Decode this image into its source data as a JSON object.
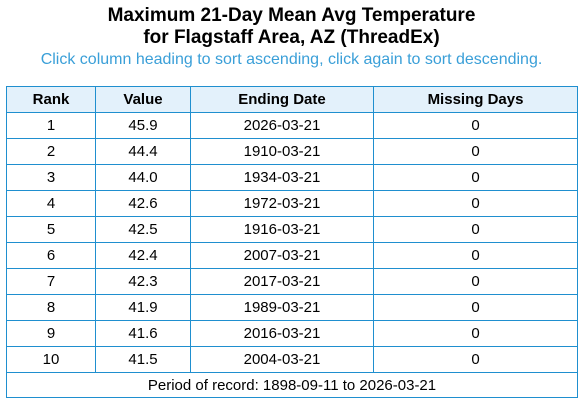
{
  "title_line1": "Maximum 21-Day Mean Avg Temperature",
  "title_line2": "for Flagstaff Area, AZ (ThreadEx)",
  "instruction": "Click column heading to sort ascending, click again to sort descending.",
  "table": {
    "headers": [
      "Rank",
      "Value",
      "Ending Date",
      "Missing Days"
    ],
    "rows": [
      {
        "rank": "1",
        "value": "45.9",
        "date": "2026-03-21",
        "missing": "0"
      },
      {
        "rank": "2",
        "value": "44.4",
        "date": "1910-03-21",
        "missing": "0"
      },
      {
        "rank": "3",
        "value": "44.0",
        "date": "1934-03-21",
        "missing": "0"
      },
      {
        "rank": "4",
        "value": "42.6",
        "date": "1972-03-21",
        "missing": "0"
      },
      {
        "rank": "5",
        "value": "42.5",
        "date": "1916-03-21",
        "missing": "0"
      },
      {
        "rank": "6",
        "value": "42.4",
        "date": "2007-03-21",
        "missing": "0"
      },
      {
        "rank": "7",
        "value": "42.3",
        "date": "2017-03-21",
        "missing": "0"
      },
      {
        "rank": "8",
        "value": "41.9",
        "date": "1989-03-21",
        "missing": "0"
      },
      {
        "rank": "9",
        "value": "41.6",
        "date": "2016-03-21",
        "missing": "0"
      },
      {
        "rank": "10",
        "value": "41.5",
        "date": "2004-03-21",
        "missing": "0"
      }
    ],
    "footer": "Period of record: 1898-09-11 to 2026-03-21"
  },
  "colors": {
    "border": "#1f8fcf",
    "header_bg": "#e3f1fb",
    "instruction_text": "#3a9fd8"
  }
}
